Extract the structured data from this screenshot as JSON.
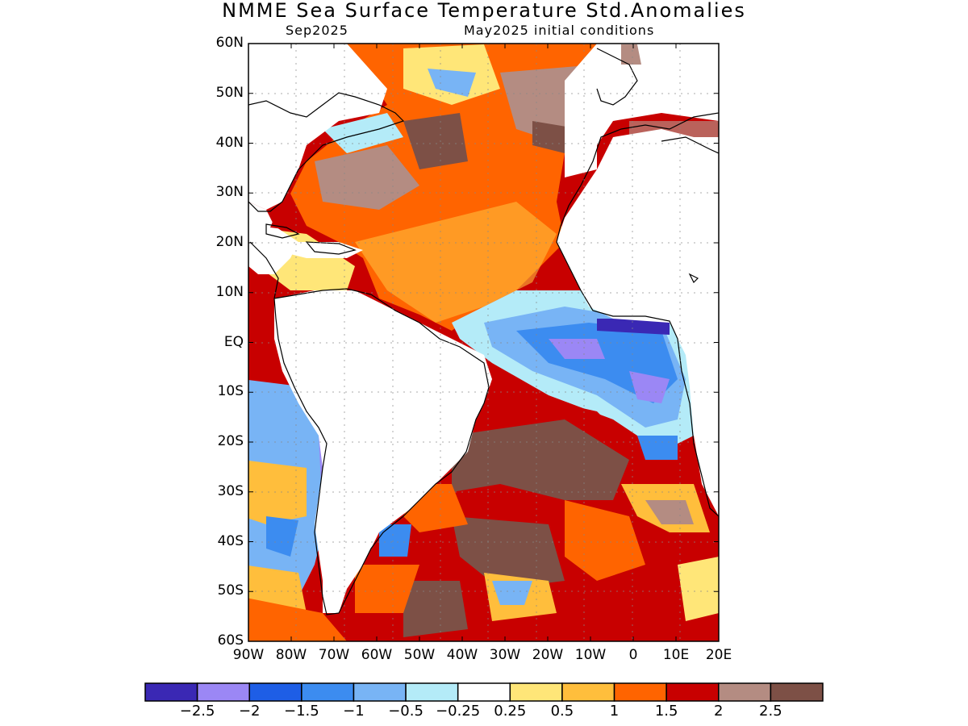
{
  "title": "NMME Sea Surface Temperature Std.Anomalies",
  "subtitle_left": "Sep2025",
  "subtitle_right": "May2025 initial conditions",
  "lat_labels": [
    "60N",
    "50N",
    "40N",
    "30N",
    "20N",
    "10N",
    "EQ",
    "10S",
    "20S",
    "30S",
    "40S",
    "50S",
    "60S"
  ],
  "lon_labels": [
    "90W",
    "80W",
    "70W",
    "60W",
    "50W",
    "40W",
    "30W",
    "20W",
    "10W",
    "0",
    "10E",
    "20E"
  ],
  "colorbar": {
    "colors": [
      "#3a28b4",
      "#9b87f5",
      "#1e5ee6",
      "#3c8cf0",
      "#78b4f5",
      "#b4ebf8",
      "#ffffff",
      "#ffe678",
      "#ffbe3c",
      "#ff6400",
      "#c80000",
      "#b48c82",
      "#7d5046"
    ],
    "labels": [
      "−2.5",
      "−2",
      "−1.5",
      "−1",
      "−0.5",
      "−0.25",
      "0.25",
      "0.5",
      "1",
      "1.5",
      "2",
      "2.5"
    ]
  }
}
